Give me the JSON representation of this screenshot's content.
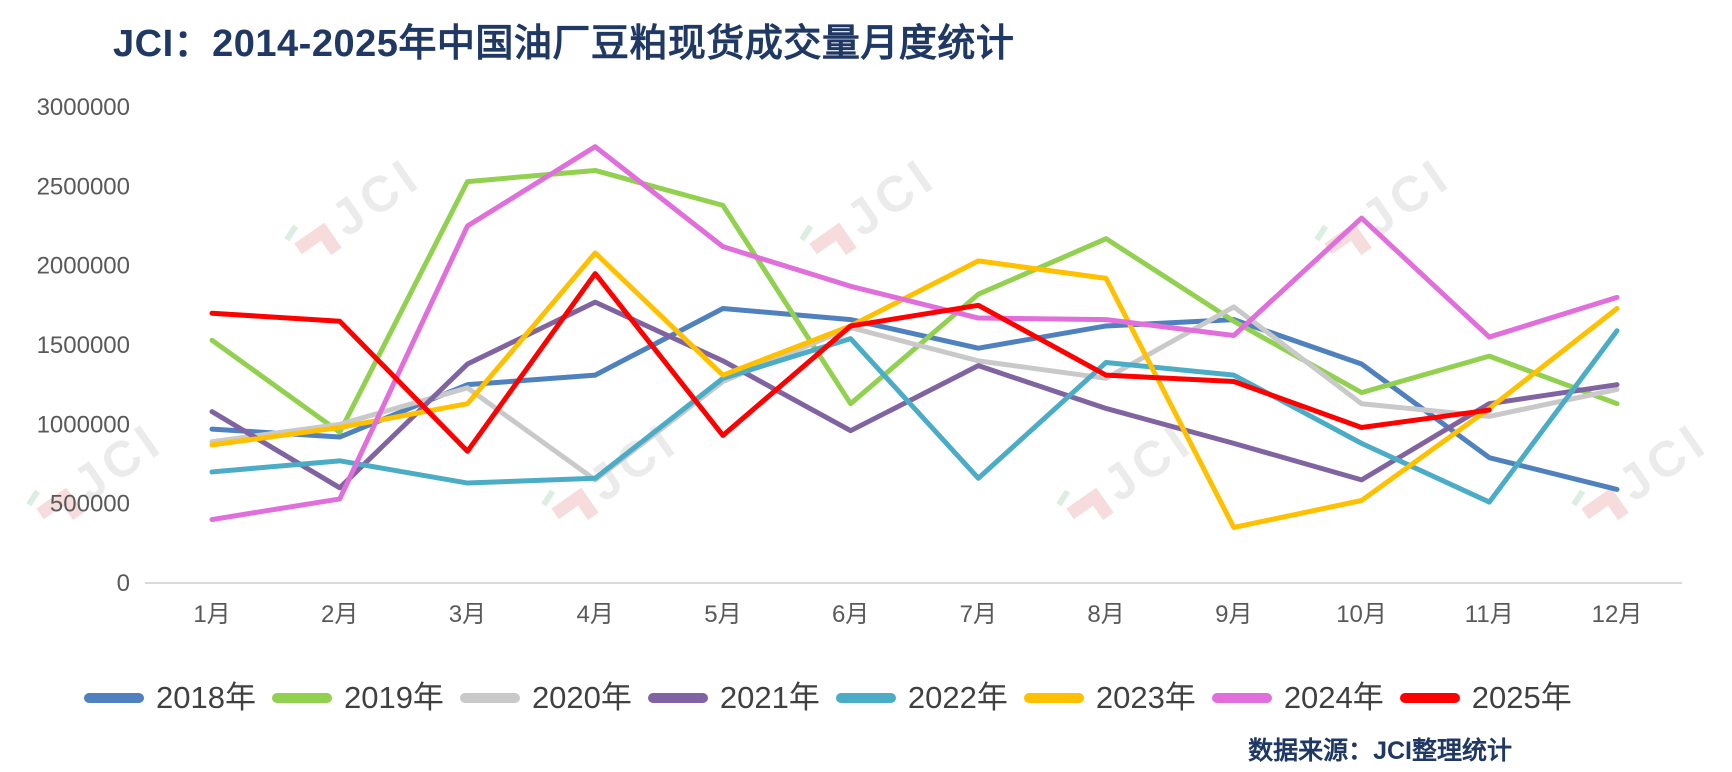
{
  "title": "JCI：2014-2025年中国油厂豆粕现货成交量月度统计",
  "source_note": "数据来源：JCI整理统计",
  "watermark": {
    "text": "JCI"
  },
  "axis": {
    "y_tick_labels": [
      "0",
      "500000",
      "1000000",
      "1500000",
      "2000000",
      "2500000",
      "3000000"
    ]
  },
  "chart_data": {
    "type": "line",
    "title": "JCI：2014-2025年中国油厂豆粕现货成交量月度统计",
    "categories": [
      "1月",
      "2月",
      "3月",
      "4月",
      "5月",
      "6月",
      "7月",
      "8月",
      "9月",
      "10月",
      "11月",
      "12月"
    ],
    "xlabel": "",
    "ylabel": "",
    "ylim": [
      0,
      3000000
    ],
    "ytick_interval": 500000,
    "grid": false,
    "legend_position": "bottom",
    "series": [
      {
        "name": "2018年",
        "color": "#4E81BD",
        "values": [
          970000,
          920000,
          1250000,
          1310000,
          1730000,
          1660000,
          1480000,
          1620000,
          1660000,
          1380000,
          790000,
          590000
        ]
      },
      {
        "name": "2019年",
        "color": "#92D050",
        "values": [
          1530000,
          950000,
          2530000,
          2600000,
          2380000,
          1130000,
          1820000,
          2170000,
          1650000,
          1200000,
          1430000,
          1130000
        ]
      },
      {
        "name": "2020年",
        "color": "#C9C9C9",
        "values": [
          890000,
          1000000,
          1230000,
          650000,
          1270000,
          1610000,
          1400000,
          1290000,
          1740000,
          1130000,
          1050000,
          1220000
        ]
      },
      {
        "name": "2021年",
        "color": "#8064A2",
        "values": [
          1080000,
          600000,
          1380000,
          1770000,
          1400000,
          960000,
          1370000,
          1100000,
          880000,
          650000,
          1130000,
          1250000
        ]
      },
      {
        "name": "2022年",
        "color": "#4BACC6",
        "values": [
          700000,
          770000,
          630000,
          660000,
          1290000,
          1540000,
          660000,
          1390000,
          1310000,
          880000,
          510000,
          1590000
        ]
      },
      {
        "name": "2023年",
        "color": "#FFC000",
        "values": [
          870000,
          980000,
          1130000,
          2080000,
          1310000,
          1620000,
          2030000,
          1920000,
          350000,
          520000,
          1100000,
          1730000
        ]
      },
      {
        "name": "2024年",
        "color": "#E06EDB",
        "values": [
          400000,
          530000,
          2250000,
          2750000,
          2120000,
          1870000,
          1670000,
          1660000,
          1560000,
          2300000,
          1550000,
          1800000
        ]
      },
      {
        "name": "2025年",
        "color": "#FF0000",
        "values": [
          1700000,
          1650000,
          830000,
          1950000,
          930000,
          1620000,
          1750000,
          1310000,
          1270000,
          980000,
          1090000,
          null
        ]
      }
    ]
  }
}
